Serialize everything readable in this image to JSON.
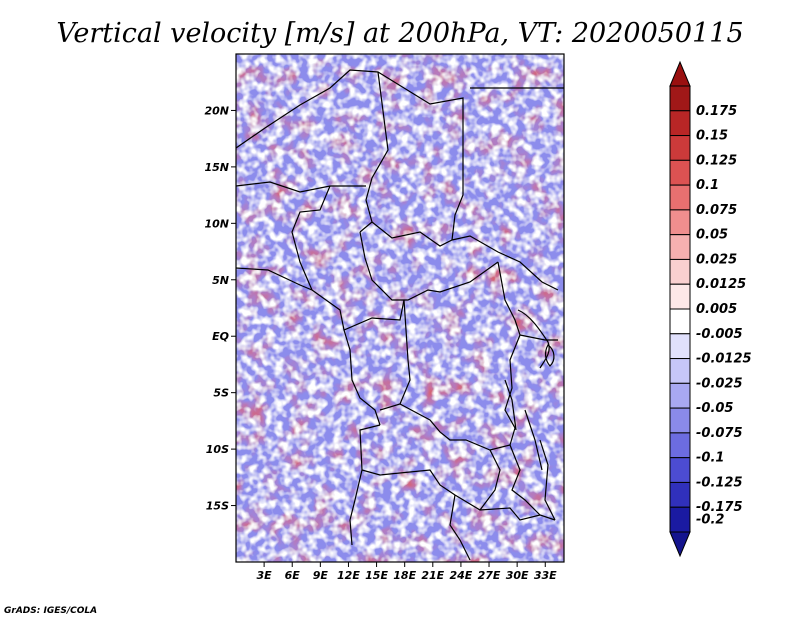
{
  "title": "Vertical velocity [m/s] at 200hPa, VT: 2020050115",
  "map": {
    "lon_range": [
      0,
      35
    ],
    "lat_range": [
      -20,
      25
    ],
    "lat_ticks": [
      {
        "value": 20,
        "label": "20N"
      },
      {
        "value": 15,
        "label": "15N"
      },
      {
        "value": 10,
        "label": "10N"
      },
      {
        "value": 5,
        "label": "5N"
      },
      {
        "value": 0,
        "label": "EQ"
      },
      {
        "value": -5,
        "label": "5S"
      },
      {
        "value": -10,
        "label": "10S"
      },
      {
        "value": -15,
        "label": "15S"
      }
    ],
    "lon_ticks": [
      {
        "value": 3,
        "label": "3E"
      },
      {
        "value": 6,
        "label": "6E"
      },
      {
        "value": 9,
        "label": "9E"
      },
      {
        "value": 12,
        "label": "12E"
      },
      {
        "value": 15,
        "label": "15E"
      },
      {
        "value": 18,
        "label": "18E"
      },
      {
        "value": 21,
        "label": "21E"
      },
      {
        "value": 24,
        "label": "24E"
      },
      {
        "value": 27,
        "label": "27E"
      },
      {
        "value": 30,
        "label": "30E"
      },
      {
        "value": 33,
        "label": "33E"
      }
    ]
  },
  "colorbar": {
    "levels": [
      {
        "label": "0.175",
        "color": "#a01818"
      },
      {
        "label": "0.15",
        "color": "#b82626"
      },
      {
        "label": "0.125",
        "color": "#cc3a3a"
      },
      {
        "label": "0.1",
        "color": "#dc5252"
      },
      {
        "label": "0.075",
        "color": "#e87070"
      },
      {
        "label": "0.05",
        "color": "#f08e8e"
      },
      {
        "label": "0.025",
        "color": "#f6b0b0"
      },
      {
        "label": "0.0125",
        "color": "#fad0d0"
      },
      {
        "label": "0.005",
        "color": "#fde8e8"
      },
      {
        "label": "-0.005",
        "color": "#ffffff"
      },
      {
        "label": "-0.0125",
        "color": "#e0e0fc"
      },
      {
        "label": "-0.025",
        "color": "#c6c6f8"
      },
      {
        "label": "-0.05",
        "color": "#a8a8f2"
      },
      {
        "label": "-0.075",
        "color": "#8a8aea"
      },
      {
        "label": "-0.1",
        "color": "#6c6ce0"
      },
      {
        "label": "-0.125",
        "color": "#4c4cd2"
      },
      {
        "label": "-0.175",
        "color": "#3030bc"
      },
      {
        "label": "-0.2",
        "color": "#1a1aa2"
      }
    ],
    "top_arrow_color": "#9a1010",
    "bottom_arrow_color": "#14148e"
  },
  "credit": "GrADS: IGES/COLA"
}
